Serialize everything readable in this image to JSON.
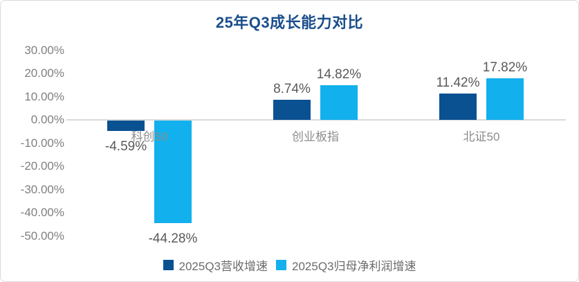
{
  "chart_data": {
    "type": "bar",
    "title": "25年Q3成长能力对比",
    "categories": [
      "科创50",
      "创业板指",
      "北证50"
    ],
    "series": [
      {
        "name": "2025Q3营收增速",
        "color": "#0a5191",
        "values": [
          -4.59,
          8.74,
          11.42
        ],
        "labels": [
          "-4.59%",
          "8.74%",
          "11.42%"
        ]
      },
      {
        "name": "2025Q3归母净利润增速",
        "color": "#12b0ec",
        "values": [
          -44.28,
          14.82,
          17.82
        ],
        "labels": [
          "-44.28%",
          "14.82%",
          "17.82%"
        ]
      }
    ],
    "y_axis": {
      "ticks": [
        "30.00%",
        "20.00%",
        "10.00%",
        "0.00%",
        "-10.00%",
        "-20.00%",
        "-30.00%",
        "-40.00%",
        "-50.00%"
      ],
      "tick_values": [
        30,
        20,
        10,
        0,
        -10,
        -20,
        -30,
        -40,
        -50
      ],
      "ylim": [
        -50,
        30
      ]
    },
    "grid": false,
    "legend_position": "bottom"
  },
  "colors": {
    "title_text": "#1a4e8c",
    "axis_text": "#7f7f7f",
    "value_label_text": "#595959",
    "category_text": "#8c8c8c",
    "legend_text": "#6b6b6b",
    "axis_line": "#d9d9d9",
    "card_border": "#d9d9d9",
    "series_dark_blue": "#0a5191",
    "series_light_blue": "#12b0ec"
  }
}
